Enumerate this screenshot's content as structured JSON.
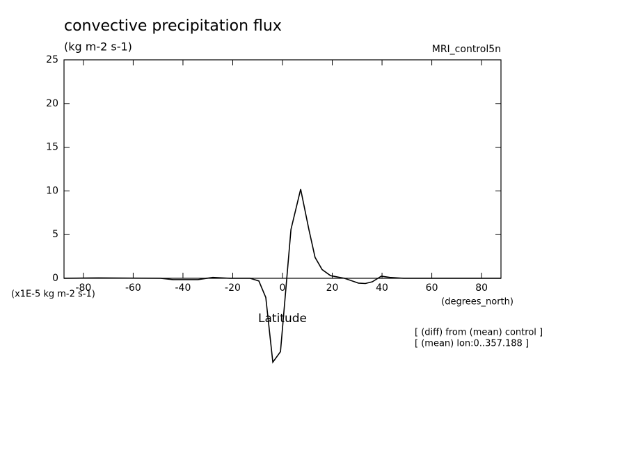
{
  "chart_data": {
    "type": "line",
    "title": "convective precipitation flux",
    "subtitle": "(kg m-2 s-1)",
    "dataset": "MRI_control5n",
    "ylabel": "(x1E-5 kg m-2 s-1)",
    "xunits": "(degrees_north)",
    "xlabel": "Latitude",
    "annotations": [
      "[ (diff) from (mean) control ]",
      "[ (mean) lon:0..357.188 ]"
    ],
    "xlim": [
      -87.8,
      87.8
    ],
    "ylim": [
      0,
      25
    ],
    "xticks": [
      -80,
      -60,
      -40,
      -20,
      0,
      20,
      40,
      60,
      80
    ],
    "yticks": [
      0,
      5,
      10,
      15,
      20,
      25
    ],
    "color": "#000000",
    "x": [
      -87.8,
      -74,
      -49,
      -44,
      -34,
      -28,
      -21,
      -13,
      -9.5,
      -6.7,
      -3.9,
      -0.8,
      3.4,
      7.3,
      10.6,
      13.1,
      15.9,
      19.3,
      24.9,
      30.5,
      33.3,
      36.1,
      39.7,
      43.1,
      48.7,
      87.8
    ],
    "values": [
      0,
      0.05,
      0,
      -0.15,
      -0.15,
      0.1,
      0,
      0,
      -0.3,
      -2.2,
      -9.6,
      -8.4,
      5.6,
      10.2,
      5.6,
      2.4,
      1.0,
      0.3,
      0,
      -0.55,
      -0.6,
      -0.4,
      0.25,
      0.1,
      0,
      0
    ]
  }
}
